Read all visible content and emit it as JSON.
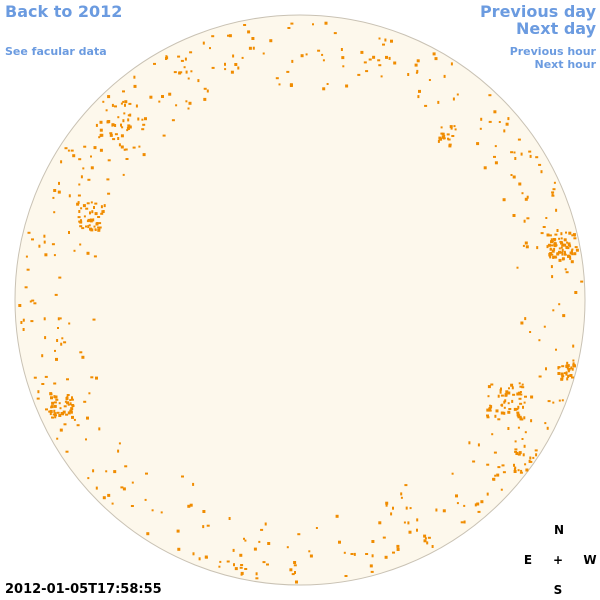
{
  "header": {
    "back_link": "Back to 2012",
    "facular_link": "See facular data",
    "previous_day": "Previous day",
    "next_day": "Next day",
    "previous_hour": "Previous hour",
    "next_hour": "Next hour"
  },
  "timestamp": "2012-01-05T17:58:55",
  "compass": {
    "north": "N",
    "east": "E",
    "center": "+",
    "west": "W",
    "south": "S"
  }
}
